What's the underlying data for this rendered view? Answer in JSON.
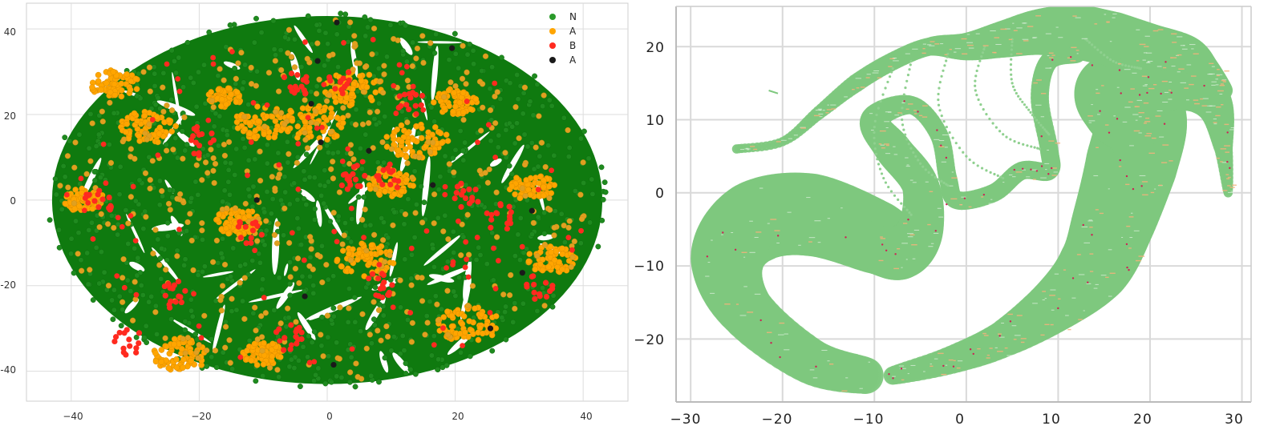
{
  "chart_data": [
    {
      "type": "scatter",
      "title": "",
      "xlabel": "",
      "ylabel": "",
      "xlim": [
        -47,
        47
      ],
      "ylim": [
        -47,
        46
      ],
      "xticks": [
        -40,
        -20,
        0,
        20,
        40
      ],
      "yticks": [
        -40,
        -20,
        0,
        20,
        40
      ],
      "xtick_labels": [
        "−40",
        "−20",
        "0",
        "20",
        "40"
      ],
      "ytick_labels": [
        "-40",
        "-20",
        "0",
        "20",
        "40"
      ],
      "grid": true,
      "legend_position": "top-right",
      "legend": [
        "N",
        "A",
        "B",
        "A"
      ],
      "series": [
        {
          "name": "N",
          "color": "#1f8a1f",
          "fill": "#0f7a0f",
          "shape": "ellipse",
          "center": [
            0,
            0
          ],
          "radius": [
            43,
            43
          ]
        },
        {
          "name": "A",
          "color": "#ffa500",
          "clusters": [
            [
              -38,
              0
            ],
            [
              -14,
              -5
            ],
            [
              4,
              26
            ],
            [
              14,
              14
            ],
            [
              20,
              23
            ],
            [
              6,
              -14
            ],
            [
              -10,
              18
            ],
            [
              -16,
              24
            ],
            [
              10,
              4
            ],
            [
              -2,
              18
            ],
            [
              -33,
              27
            ],
            [
              -28,
              17
            ],
            [
              -10,
              -36
            ],
            [
              22,
              -29
            ],
            [
              35,
              -14
            ],
            [
              -23,
              -36
            ],
            [
              32,
              3
            ]
          ]
        },
        {
          "name": "B",
          "color": "#ff2a1f",
          "clusters": [
            [
              -36,
              -1
            ],
            [
              -20,
              14
            ],
            [
              -12,
              -7
            ],
            [
              4,
              5
            ],
            [
              10,
              6
            ],
            [
              -5,
              27
            ],
            [
              2,
              28
            ],
            [
              13,
              23
            ],
            [
              -31,
              -33
            ],
            [
              22,
              1
            ],
            [
              -6,
              -32
            ],
            [
              8,
              -20
            ],
            [
              27,
              -4
            ],
            [
              -24,
              -22
            ],
            [
              33,
              -20
            ]
          ]
        },
        {
          "name": "A",
          "color": "#1a1a1a",
          "points": [
            [
              1.5,
              41.5
            ],
            [
              19.5,
              35.5
            ],
            [
              -1.5,
              32.5
            ],
            [
              -2.5,
              22.5
            ],
            [
              -1,
              13.5
            ],
            [
              6.5,
              11.5
            ],
            [
              16.5,
              3.5
            ],
            [
              -11,
              0
            ],
            [
              32,
              -2.5
            ],
            [
              30.5,
              -17
            ],
            [
              -3.5,
              -22.5
            ],
            [
              25.5,
              -30
            ],
            [
              1,
              -38.5
            ]
          ]
        }
      ]
    },
    {
      "type": "scatter",
      "title": "",
      "xlabel": "",
      "ylabel": "",
      "xlim": [
        -31.5,
        31
      ],
      "ylim": [
        -28.5,
        25.5
      ],
      "xticks": [
        -30,
        -20,
        -10,
        0,
        10,
        20,
        30
      ],
      "yticks": [
        -20,
        -10,
        0,
        10,
        20
      ],
      "xtick_labels": [
        "−30",
        "−20",
        "−10",
        "0",
        "10",
        "20",
        "30"
      ],
      "ytick_labels": [
        "−20",
        "−10",
        "0",
        "10",
        "20"
      ],
      "grid": true,
      "series": [
        {
          "color": "#7ec87e",
          "shape": "curve-band",
          "path": [
            [
              -11,
              -25
            ],
            [
              -17,
              -23
            ],
            [
              -24,
              -16
            ],
            [
              -26,
              -9
            ],
            [
              -23,
              -4
            ],
            [
              -17,
              -3
            ],
            [
              -10,
              -6
            ],
            [
              -7,
              -8
            ],
            [
              -5,
              -5
            ],
            [
              -5,
              1
            ],
            [
              -8,
              6
            ],
            [
              -10,
              10
            ],
            [
              -6,
              12
            ],
            [
              -3,
              8
            ],
            [
              -2,
              2
            ],
            [
              -1,
              -1
            ],
            [
              3,
              0
            ],
            [
              6,
              3
            ],
            [
              9,
              3
            ],
            [
              9,
              6
            ],
            [
              8,
              13
            ],
            [
              9,
              18
            ],
            [
              12,
              19
            ]
          ],
          "widths": [
            4,
            5,
            6,
            8,
            9,
            9,
            8,
            6,
            5,
            4,
            4,
            3,
            2,
            2,
            2,
            2,
            2,
            2,
            2,
            2,
            2,
            2,
            2
          ]
        },
        {
          "color": "#7ec87e",
          "shape": "curve-band",
          "path": [
            [
              -8,
              -25
            ],
            [
              -2,
              -23
            ],
            [
              4,
              -20
            ],
            [
              10,
              -15
            ],
            [
              14,
              -10
            ],
            [
              16,
              -4
            ],
            [
              18,
              4
            ],
            [
              19,
              10
            ],
            [
              17,
              12
            ],
            [
              16,
              14
            ],
            [
              20,
              15
            ],
            [
              24,
              15
            ],
            [
              27,
              12
            ],
            [
              28,
              6
            ],
            [
              28.5,
              0
            ]
          ],
          "widths": [
            2,
            3,
            4,
            6,
            8,
            9,
            10,
            10,
            9,
            8,
            7,
            6,
            4,
            2,
            1
          ]
        },
        {
          "color": "#7ec87e",
          "shape": "curve-band",
          "path": [
            [
              -25,
              6
            ],
            [
              -20,
              7
            ],
            [
              -16,
              11
            ],
            [
              -12,
              15
            ],
            [
              -8,
              18
            ],
            [
              -4,
              20
            ],
            [
              0,
              20
            ],
            [
              4,
              21
            ],
            [
              8,
              22
            ],
            [
              12,
              22
            ],
            [
              16,
              21
            ],
            [
              20,
              20
            ],
            [
              24,
              19
            ],
            [
              26,
              17
            ],
            [
              28,
              14
            ]
          ],
          "widths": [
            1,
            1,
            1.5,
            2,
            2,
            2,
            3,
            4,
            5,
            6,
            6,
            5,
            4,
            3,
            2
          ]
        },
        {
          "color": "#f5b27a",
          "shape": "streaks"
        },
        {
          "color": "#cc2255",
          "shape": "specks"
        }
      ]
    }
  ]
}
